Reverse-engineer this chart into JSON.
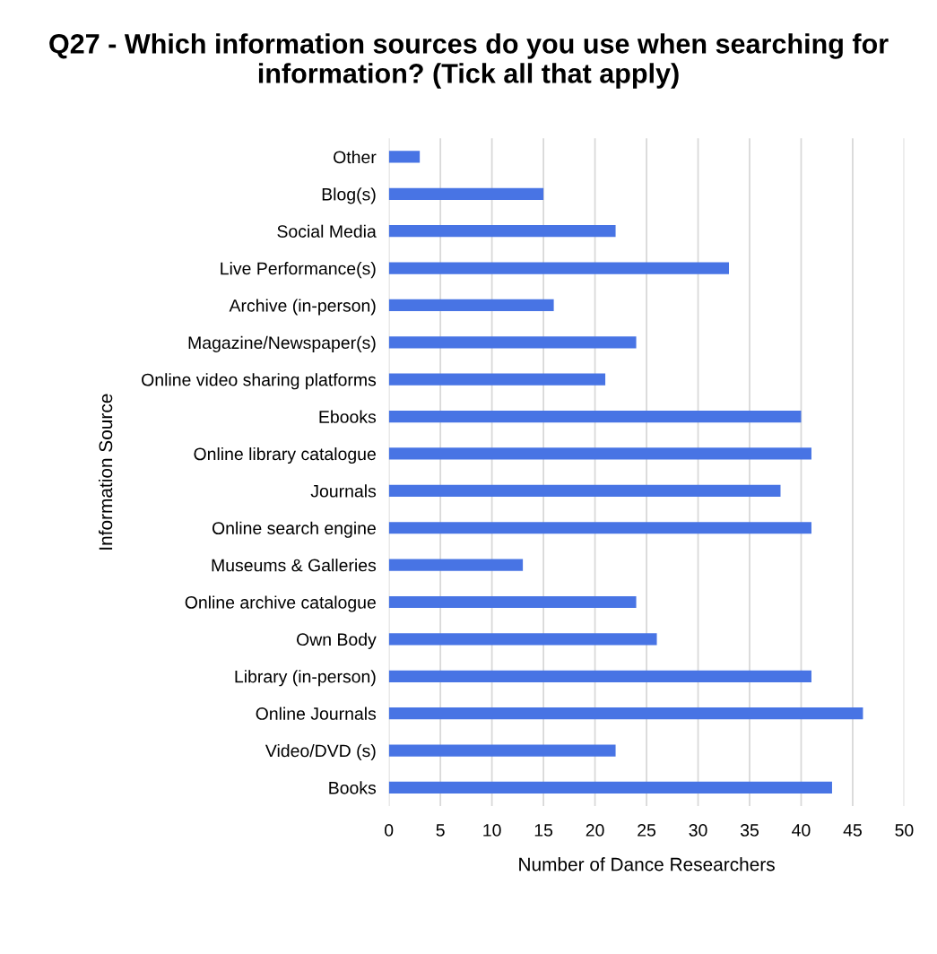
{
  "chart_data": {
    "type": "bar",
    "orientation": "horizontal",
    "title": "Q27 - Which information sources do you use when searching for information? (Tick all that apply)",
    "xlabel": "Number of Dance Researchers",
    "ylabel": "Information Source",
    "categories": [
      "Other",
      "Blog(s)",
      "Social Media",
      "Live Performance(s)",
      "Archive (in-person)",
      "Magazine/Newspaper(s)",
      "Online video sharing platforms",
      "Ebooks",
      "Online library catalogue",
      "Journals",
      "Online search engine",
      "Museums & Galleries",
      "Online archive catalogue",
      "Own Body",
      "Library (in-person)",
      "Online Journals",
      "Video/DVD (s)",
      "Books"
    ],
    "values": [
      3,
      15,
      22,
      33,
      16,
      24,
      21,
      40,
      41,
      38,
      41,
      13,
      24,
      26,
      41,
      46,
      22,
      43
    ],
    "color": "#4874e4",
    "xlim": [
      0,
      50
    ],
    "xticks": [
      0,
      5,
      10,
      15,
      20,
      25,
      30,
      35,
      40,
      45,
      50
    ],
    "grid": "x"
  }
}
